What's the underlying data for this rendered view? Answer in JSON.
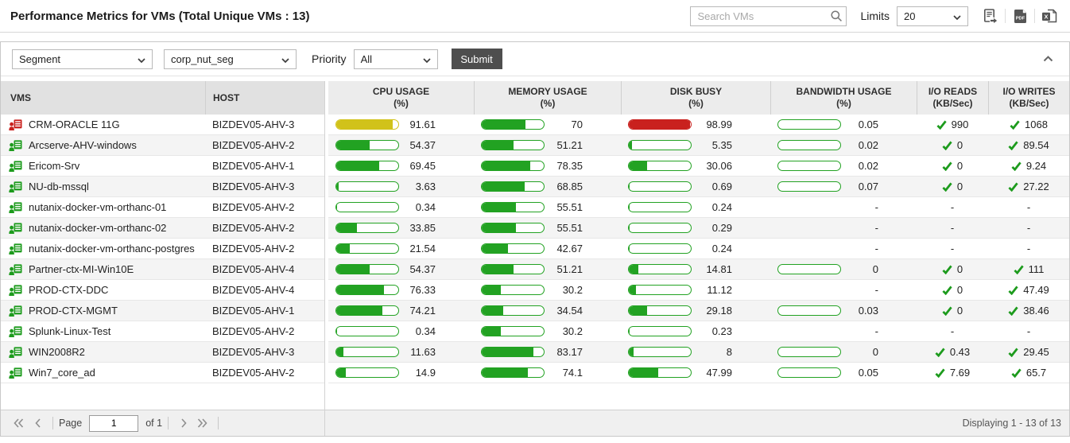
{
  "header": {
    "title": "Performance Metrics for VMs (Total Unique VMs : 13)",
    "search_placeholder": "Search VMs",
    "limits_label": "Limits",
    "limits_value": "20"
  },
  "filters": {
    "segment_value": "Segment",
    "segment_option_value": "corp_nut_seg",
    "priority_label": "Priority",
    "priority_value": "All",
    "submit_label": "Submit"
  },
  "table": {
    "columns": [
      {
        "label": "VMS",
        "sub": ""
      },
      {
        "label": "HOST",
        "sub": ""
      },
      {
        "label": "CPU USAGE",
        "sub": "(%)"
      },
      {
        "label": "MEMORY USAGE",
        "sub": "(%)"
      },
      {
        "label": "DISK BUSY",
        "sub": "(%)"
      },
      {
        "label": "BANDWIDTH USAGE",
        "sub": "(%)"
      },
      {
        "label": "I/O READS",
        "sub": "(KB/Sec)"
      },
      {
        "label": "I/O WRITES",
        "sub": "(KB/Sec)"
      }
    ],
    "rows": [
      {
        "vm": "CRM-ORACLE 11G",
        "status": "red",
        "host": "BIZDEV05-AHV-3",
        "cpu": {
          "v": "91.61",
          "c": "yellow"
        },
        "mem": {
          "v": "70"
        },
        "disk": {
          "v": "98.99",
          "c": "red"
        },
        "bw": {
          "v": "0.05"
        },
        "reads": "990",
        "writes": "1068"
      },
      {
        "vm": "Arcserve-AHV-windows",
        "status": "green",
        "host": "BIZDEV05-AHV-2",
        "cpu": {
          "v": "54.37"
        },
        "mem": {
          "v": "51.21"
        },
        "disk": {
          "v": "5.35"
        },
        "bw": {
          "v": "0.02"
        },
        "reads": "0",
        "writes": "89.54"
      },
      {
        "vm": "Ericom-Srv",
        "status": "green",
        "host": "BIZDEV05-AHV-1",
        "cpu": {
          "v": "69.45"
        },
        "mem": {
          "v": "78.35"
        },
        "disk": {
          "v": "30.06"
        },
        "bw": {
          "v": "0.02"
        },
        "reads": "0",
        "writes": "9.24"
      },
      {
        "vm": "NU-db-mssql",
        "status": "green",
        "host": "BIZDEV05-AHV-3",
        "cpu": {
          "v": "3.63"
        },
        "mem": {
          "v": "68.85"
        },
        "disk": {
          "v": "0.69"
        },
        "bw": {
          "v": "0.07"
        },
        "reads": "0",
        "writes": "27.22"
      },
      {
        "vm": "nutanix-docker-vm-orthanc-01",
        "status": "green",
        "host": "BIZDEV05-AHV-2",
        "cpu": {
          "v": "0.34"
        },
        "mem": {
          "v": "55.51"
        },
        "disk": {
          "v": "0.24"
        },
        "bw": null,
        "reads": null,
        "writes": null
      },
      {
        "vm": "nutanix-docker-vm-orthanc-02",
        "status": "green",
        "host": "BIZDEV05-AHV-2",
        "cpu": {
          "v": "33.85"
        },
        "mem": {
          "v": "55.51"
        },
        "disk": {
          "v": "0.29"
        },
        "bw": null,
        "reads": null,
        "writes": null
      },
      {
        "vm": "nutanix-docker-vm-orthanc-postgres",
        "status": "green",
        "host": "BIZDEV05-AHV-2",
        "cpu": {
          "v": "21.54"
        },
        "mem": {
          "v": "42.67"
        },
        "disk": {
          "v": "0.24"
        },
        "bw": null,
        "reads": null,
        "writes": null
      },
      {
        "vm": "Partner-ctx-MI-Win10E",
        "status": "green",
        "host": "BIZDEV05-AHV-4",
        "cpu": {
          "v": "54.37"
        },
        "mem": {
          "v": "51.21"
        },
        "disk": {
          "v": "14.81"
        },
        "bw": {
          "v": "0"
        },
        "reads": "0",
        "writes": "111"
      },
      {
        "vm": "PROD-CTX-DDC",
        "status": "green",
        "host": "BIZDEV05-AHV-4",
        "cpu": {
          "v": "76.33"
        },
        "mem": {
          "v": "30.2"
        },
        "disk": {
          "v": "11.12"
        },
        "bw": null,
        "reads": "0",
        "writes": "47.49"
      },
      {
        "vm": "PROD-CTX-MGMT",
        "status": "green",
        "host": "BIZDEV05-AHV-1",
        "cpu": {
          "v": "74.21"
        },
        "mem": {
          "v": "34.54"
        },
        "disk": {
          "v": "29.18"
        },
        "bw": {
          "v": "0.03"
        },
        "reads": "0",
        "writes": "38.46"
      },
      {
        "vm": "Splunk-Linux-Test",
        "status": "green",
        "host": "BIZDEV05-AHV-2",
        "cpu": {
          "v": "0.34"
        },
        "mem": {
          "v": "30.2"
        },
        "disk": {
          "v": "0.23"
        },
        "bw": null,
        "reads": null,
        "writes": null
      },
      {
        "vm": "WIN2008R2",
        "status": "green",
        "host": "BIZDEV05-AHV-3",
        "cpu": {
          "v": "11.63"
        },
        "mem": {
          "v": "83.17"
        },
        "disk": {
          "v": "8"
        },
        "bw": {
          "v": "0"
        },
        "reads": "0.43",
        "writes": "29.45"
      },
      {
        "vm": "Win7_core_ad",
        "status": "green",
        "host": "BIZDEV05-AHV-2",
        "cpu": {
          "v": "14.9"
        },
        "mem": {
          "v": "74.1"
        },
        "disk": {
          "v": "47.99"
        },
        "bw": {
          "v": "0.05"
        },
        "reads": "7.69",
        "writes": "65.7"
      }
    ]
  },
  "pager": {
    "page_label": "Page",
    "page_value": "1",
    "of_label": "of 1",
    "displaying": "Displaying 1 - 13 of 13"
  },
  "colors": {
    "bar_green": "#22a222",
    "bar_yellow": "#d1c21a",
    "bar_red": "#c9211e",
    "check_green": "#1d9b1d"
  }
}
